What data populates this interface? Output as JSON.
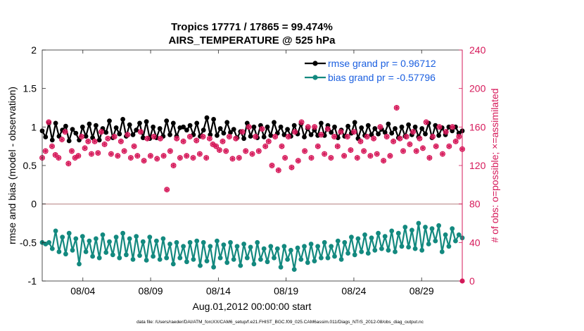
{
  "chart_data": {
    "type": "line",
    "title": "Tropics 17771 / 17865 = 99.474%",
    "subtitle": "AIRS_TEMPERATURE @ 525 hPa",
    "xlabel": "Aug.01,2012 00:00:00 start",
    "ylabel_left": "rmse and bias (model - observation)",
    "ylabel_right": "# of obs: o=possible; ×=assimilated",
    "footer": "data file: /Users/raeder/DAI/ATM_forcXX/CAM6_setup/f.e21.FHIST_BGC.f09_025.CAM6assim.011/Diags_NTrS_2012-08/obs_diag_output.nc",
    "xlim": [
      1,
      32
    ],
    "ylim_left": [
      -1,
      2
    ],
    "ylim_right": [
      0,
      240
    ],
    "yticks_left": [
      "2",
      "1.5",
      "1",
      "0.5",
      "0",
      "-0.5",
      "-1"
    ],
    "yticks_right": [
      "240",
      "200",
      "160",
      "120",
      "80",
      "40",
      "0"
    ],
    "xticks": [
      {
        "x": 4,
        "label": "08/04"
      },
      {
        "x": 9,
        "label": "08/09"
      },
      {
        "x": 14,
        "label": "08/14"
      },
      {
        "x": 19,
        "label": "08/19"
      },
      {
        "x": 24,
        "label": "08/24"
      },
      {
        "x": 29,
        "label": "08/29"
      }
    ],
    "zero_line": 0,
    "legend_position": "top-right",
    "colors": {
      "rmse": "#000000",
      "bias": "#13897f",
      "obs": "#d6195a",
      "legend_text": "#1a5fe0",
      "zero_line": "#c8a0a0"
    },
    "series": [
      {
        "name": "rmse grand pr = 0.96712",
        "axis": "left",
        "values": [
          0.95,
          0.87,
          1.05,
          0.83,
          1.05,
          0.88,
          0.96,
          1.01,
          0.82,
          0.97,
          0.92,
          0.83,
          1.0,
          0.88,
          1.04,
          0.86,
          1.02,
          0.83,
          0.98,
          0.93,
          1.08,
          0.86,
          0.99,
          0.91,
          1.1,
          0.88,
          1.03,
          0.9,
          0.96,
          1.05,
          0.86,
          1.07,
          0.85,
          1.0,
          0.86,
          0.98,
          0.88,
          1.08,
          0.9,
          1.05,
          0.88,
          0.99,
          1.0,
          0.96,
          1.02,
          0.9,
          1.05,
          0.88,
          0.96,
          1.12,
          0.9,
          1.1,
          0.89,
          0.98,
          0.92,
          1.06,
          0.93,
          0.97,
          0.86,
          0.94,
          0.85,
          1.05,
          0.88,
          1.0,
          0.86,
          1.02,
          0.87,
          1.0,
          0.89,
          1.06,
          0.92,
          1.0,
          0.9,
          0.97,
          0.88,
          1.02,
          0.91,
          1.04,
          0.87,
          0.98,
          0.9,
          0.96,
          0.89,
          1.05,
          0.89,
          1.02,
          0.93,
          1.0,
          0.86,
          0.96,
          0.88,
          1.01,
          0.92,
          1.06,
          0.85,
          0.99,
          0.89,
          1.02,
          0.9,
          0.98,
          0.91,
          0.97,
          0.93,
          1.04,
          0.92,
          0.98,
          0.86,
          1.0,
          0.88,
          1.03,
          0.9,
          1.0,
          0.87,
          0.98,
          0.91,
          1.05,
          0.86,
          1.02,
          0.89,
          0.99,
          0.9,
          1.0,
          0.95,
          1.0,
          0.92,
          0.95
        ],
        "markers": "filled-circle",
        "note": "dense 6-hourly series, values read approximately from plot"
      },
      {
        "name": "bias grand pr = -0.57796",
        "axis": "left",
        "values": [
          -0.5,
          -0.52,
          -0.5,
          -0.58,
          -0.35,
          -0.62,
          -0.43,
          -0.65,
          -0.38,
          -0.6,
          -0.45,
          -0.78,
          -0.42,
          -0.62,
          -0.48,
          -0.68,
          -0.45,
          -0.7,
          -0.4,
          -0.63,
          -0.49,
          -0.66,
          -0.43,
          -0.7,
          -0.38,
          -0.66,
          -0.45,
          -0.72,
          -0.42,
          -0.67,
          -0.49,
          -0.73,
          -0.43,
          -0.68,
          -0.48,
          -0.72,
          -0.45,
          -0.7,
          -0.52,
          -0.78,
          -0.5,
          -0.7,
          -0.55,
          -0.75,
          -0.5,
          -0.72,
          -0.48,
          -0.8,
          -0.5,
          -0.74,
          -0.55,
          -0.82,
          -0.48,
          -0.7,
          -0.53,
          -0.76,
          -0.5,
          -0.72,
          -0.55,
          -0.8,
          -0.52,
          -0.7,
          -0.56,
          -0.78,
          -0.5,
          -0.72,
          -0.58,
          -0.75,
          -0.55,
          -0.7,
          -0.58,
          -0.82,
          -0.55,
          -0.72,
          -0.6,
          -0.85,
          -0.57,
          -0.72,
          -0.55,
          -0.76,
          -0.52,
          -0.74,
          -0.55,
          -0.7,
          -0.5,
          -0.7,
          -0.55,
          -0.68,
          -0.48,
          -0.72,
          -0.5,
          -0.64,
          -0.43,
          -0.66,
          -0.45,
          -0.62,
          -0.4,
          -0.64,
          -0.44,
          -0.6,
          -0.38,
          -0.58,
          -0.42,
          -0.6,
          -0.35,
          -0.62,
          -0.38,
          -0.55,
          -0.3,
          -0.56,
          -0.34,
          -0.58,
          -0.25,
          -0.6,
          -0.3,
          -0.52,
          -0.32,
          -0.48,
          -0.28,
          -0.62,
          -0.4,
          -0.55,
          -0.32,
          -0.48,
          -0.4,
          -0.44
        ],
        "markers": "filled-circle"
      },
      {
        "name": "obs possible",
        "axis": "right",
        "values": [
          128,
          135,
          165,
          140,
          131,
          128,
          147,
          155,
          122,
          135,
          128,
          130,
          150,
          138,
          145,
          132,
          145,
          133,
          155,
          142,
          148,
          132,
          150,
          130,
          145,
          135,
          152,
          128,
          140,
          130,
          155,
          125,
          148,
          130,
          150,
          127,
          148,
          130,
          95,
          135,
          120,
          148,
          128,
          145,
          130,
          150,
          128,
          146,
          132,
          150,
          128,
          148,
          142,
          140,
          136,
          145,
          135,
          150,
          127,
          148,
          128,
          155,
          135,
          160,
          132,
          150,
          135,
          158,
          140,
          145,
          120,
          150,
          115,
          140,
          128,
          150,
          118,
          155,
          125,
          165,
          135,
          160,
          128,
          160,
          140,
          152,
          132,
          158,
          128,
          150,
          140,
          155,
          130,
          150,
          136,
          155,
          128,
          145,
          135,
          150,
          130,
          148,
          132,
          160,
          125,
          150,
          130,
          145,
          180,
          148,
          135,
          150,
          142,
          155,
          135,
          148,
          138,
          165,
          128,
          150,
          140,
          160,
          132,
          155,
          140,
          160,
          145,
          150,
          137
        ],
        "markers": "open-circle"
      },
      {
        "name": "obs assimilated",
        "axis": "right",
        "values": [
          128,
          135,
          165,
          140,
          131,
          128,
          147,
          155,
          122,
          135,
          128,
          130,
          150,
          138,
          145,
          132,
          145,
          133,
          155,
          142,
          148,
          132,
          150,
          130,
          145,
          135,
          152,
          128,
          140,
          130,
          155,
          125,
          148,
          130,
          150,
          127,
          148,
          130,
          95,
          135,
          120,
          148,
          128,
          145,
          130,
          150,
          128,
          146,
          132,
          150,
          128,
          148,
          142,
          140,
          136,
          145,
          135,
          150,
          127,
          148,
          128,
          155,
          135,
          160,
          132,
          150,
          135,
          158,
          140,
          145,
          120,
          150,
          115,
          140,
          128,
          150,
          118,
          155,
          125,
          165,
          135,
          160,
          128,
          160,
          140,
          152,
          132,
          158,
          128,
          150,
          140,
          155,
          130,
          150,
          136,
          155,
          128,
          145,
          135,
          150,
          130,
          148,
          132,
          160,
          125,
          150,
          130,
          145,
          180,
          148,
          135,
          150,
          142,
          155,
          135,
          148,
          138,
          165,
          128,
          150,
          140,
          160,
          132,
          155,
          140,
          160,
          145,
          150,
          137
        ],
        "markers": "asterisk"
      }
    ]
  }
}
